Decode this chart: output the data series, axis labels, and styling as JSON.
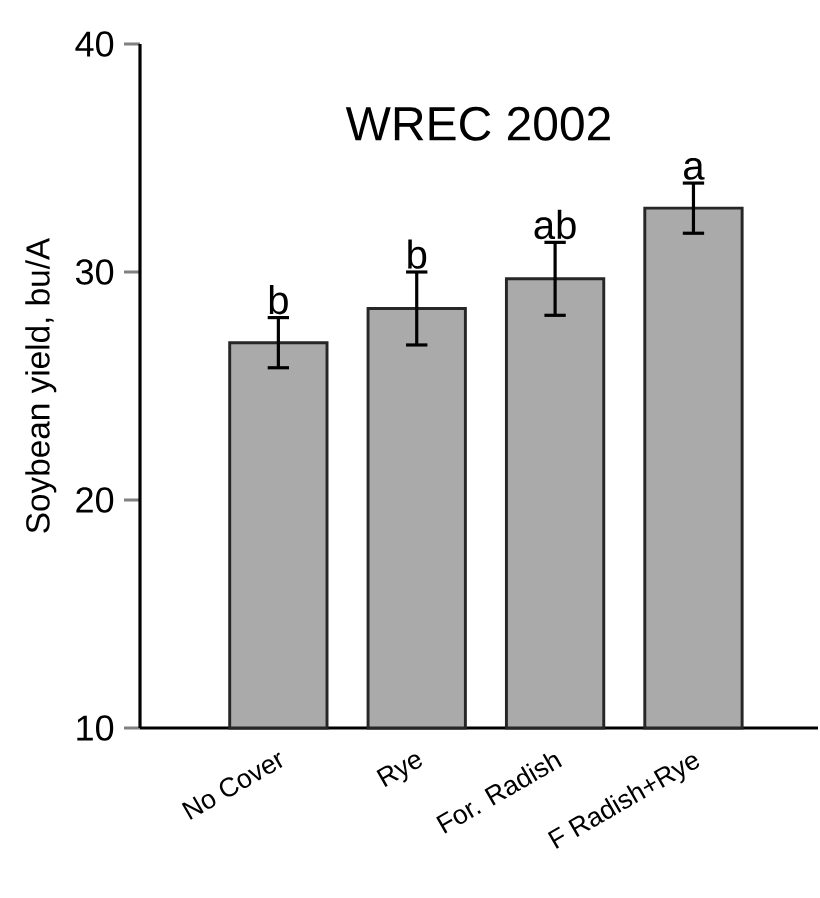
{
  "chart_data": {
    "type": "bar",
    "title": "WREC 2002",
    "ylabel": "Soybean yield, bu/A",
    "categories": [
      "No Cover",
      "Rye",
      "For. Radish",
      "F Radish+Rye"
    ],
    "values": [
      26.9,
      28.4,
      29.7,
      32.8
    ],
    "errors": [
      1.1,
      1.6,
      1.6,
      1.1
    ],
    "color": "#aaaaaa",
    "ylim": [
      10,
      40
    ],
    "yticks": [
      10,
      20,
      30,
      40
    ],
    "annotations": [
      {
        "text": "b",
        "x": "No Cover",
        "y": 28.0
      },
      {
        "text": "b",
        "x": "Rye",
        "y": 30.0
      },
      {
        "text": "ab",
        "x": "For. Radish",
        "y": 31.3
      },
      {
        "text": "a",
        "x": "F Radish+Rye",
        "y": 33.9
      }
    ]
  }
}
